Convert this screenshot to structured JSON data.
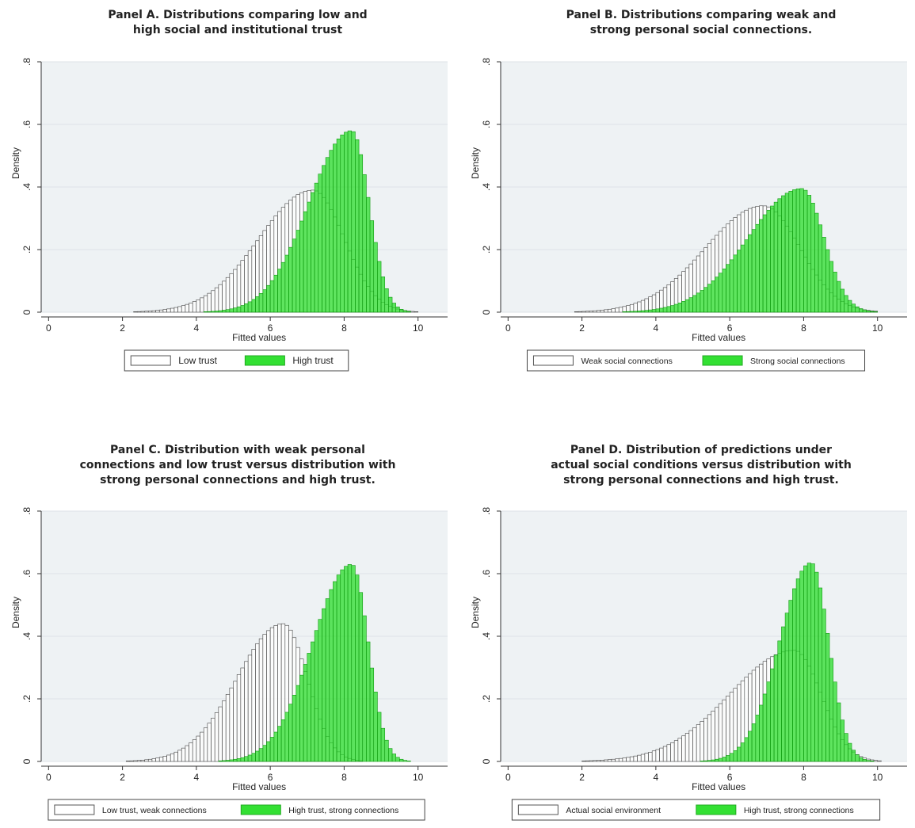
{
  "chart_data": [
    {
      "type": "histogram",
      "panel_title": "Panel A. Distributions comparing low and\nhigh social and institutional trust",
      "xlabel": "Fitted values",
      "ylabel": "Density",
      "xlim": [
        -0.2,
        10.8
      ],
      "ylim": [
        0,
        0.8
      ],
      "xticks": [
        "0",
        "2",
        "4",
        "6",
        "8",
        "10"
      ],
      "yticks": [
        "0",
        ".2",
        ".4",
        ".6",
        ".8"
      ],
      "grid": true,
      "legend_position": "bottom",
      "series": [
        {
          "name": "Low trust",
          "fill": "none",
          "color": "#555555",
          "curve": {
            "mode": 7.15,
            "peak": 0.39,
            "left_sd": 1.45,
            "right_sd": 0.85,
            "min": 1.4,
            "max": 10.2
          }
        },
        {
          "name": "High trust",
          "fill": "#22dd22",
          "color": "#22cc22",
          "curve": {
            "mode": 8.2,
            "peak": 0.58,
            "left_sd": 1.15,
            "right_sd": 0.47,
            "min": 1.6,
            "max": 10.2
          }
        }
      ]
    },
    {
      "type": "histogram",
      "panel_title": "Panel B. Distributions comparing weak and\nstrong personal social connections.",
      "xlabel": "Fitted values",
      "ylabel": "Density",
      "xlim": [
        -0.2,
        10.8
      ],
      "ylim": [
        0,
        0.8
      ],
      "xticks": [
        "0",
        "2",
        "4",
        "6",
        "8",
        "10"
      ],
      "yticks": [
        "0",
        ".2",
        ".4",
        ".6",
        ".8"
      ],
      "grid": true,
      "legend_position": "bottom",
      "series": [
        {
          "name": "Weak social connections",
          "fill": "none",
          "color": "#555555",
          "curve": {
            "mode": 6.9,
            "peak": 0.34,
            "left_sd": 1.55,
            "right_sd": 1.0,
            "min": 1.0,
            "max": 10.0
          }
        },
        {
          "name": "Strong social connections",
          "fill": "#22dd22",
          "color": "#22cc22",
          "curve": {
            "mode": 7.95,
            "peak": 0.395,
            "left_sd": 1.45,
            "right_sd": 0.6,
            "min": 1.0,
            "max": 10.2
          }
        }
      ]
    },
    {
      "type": "histogram",
      "panel_title": "Panel C. Distribution with weak personal\nconnections and low trust versus distribution with\nstrong personal connections and high trust.",
      "xlabel": "Fitted values",
      "ylabel": "Density",
      "xlim": [
        -0.2,
        10.8
      ],
      "ylim": [
        0,
        0.8
      ],
      "xticks": [
        "0",
        "2",
        "4",
        "6",
        "8",
        "10"
      ],
      "yticks": [
        "0",
        ".2",
        ".4",
        ".6",
        ".8"
      ],
      "grid": true,
      "legend_position": "bottom",
      "series": [
        {
          "name": "Low trust, weak connections",
          "fill": "none",
          "color": "#555555",
          "curve": {
            "mode": 6.35,
            "peak": 0.44,
            "left_sd": 1.25,
            "right_sd": 0.65,
            "min": 1.5,
            "max": 9.6
          }
        },
        {
          "name": "High trust, strong connections",
          "fill": "#22dd22",
          "color": "#22cc22",
          "curve": {
            "mode": 8.2,
            "peak": 0.63,
            "left_sd": 1.05,
            "right_sd": 0.45,
            "min": 2.5,
            "max": 10.5
          }
        }
      ]
    },
    {
      "type": "histogram",
      "panel_title": "Panel D. Distribution of predictions under\nactual social conditions versus distribution with\nstrong personal connections and high trust.",
      "xlabel": "Fitted values",
      "ylabel": "Density",
      "xlim": [
        -0.2,
        10.8
      ],
      "ylim": [
        0,
        0.8
      ],
      "xticks": [
        "0",
        "2",
        "4",
        "6",
        "8",
        "10"
      ],
      "yticks": [
        "0",
        ".2",
        ".4",
        ".6",
        ".8"
      ],
      "grid": true,
      "legend_position": "bottom",
      "series": [
        {
          "name": "Actual social environment",
          "fill": "none",
          "color": "#555555",
          "curve": {
            "mode": 7.75,
            "peak": 0.355,
            "left_sd": 1.75,
            "right_sd": 0.72,
            "min": 0.8,
            "max": 10.2
          }
        },
        {
          "name": "High trust, strong connections",
          "fill": "#22dd22",
          "color": "#22cc22",
          "curve": {
            "mode": 8.2,
            "peak": 0.635,
            "left_sd": 0.85,
            "right_sd": 0.48,
            "min": 2.5,
            "max": 10.5
          }
        }
      ]
    }
  ]
}
